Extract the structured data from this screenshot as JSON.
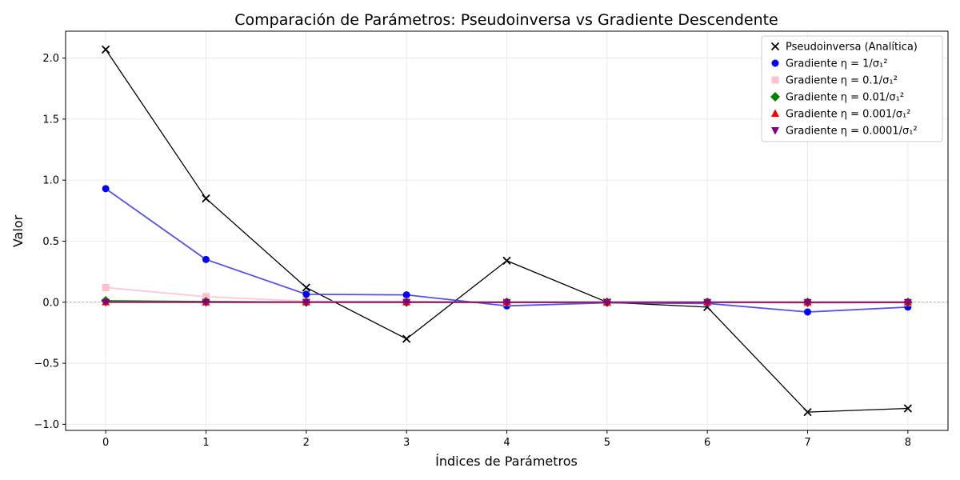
{
  "chart_data": {
    "type": "line",
    "title": "Comparación de Parámetros: Pseudoinversa vs Gradiente Descendente",
    "xlabel": "Índices de Parámetros",
    "ylabel": "Valor",
    "xlim": [
      -0.4,
      8.4
    ],
    "ylim": [
      -1.05,
      2.22
    ],
    "x": [
      0,
      1,
      2,
      3,
      4,
      5,
      6,
      7,
      8
    ],
    "x_ticks": [
      "0",
      "1",
      "2",
      "3",
      "4",
      "5",
      "6",
      "7",
      "8"
    ],
    "y_ticks": [
      -1.0,
      -0.5,
      0.0,
      0.5,
      1.0,
      1.5,
      2.0
    ],
    "y_tick_labels": [
      "−1.0",
      "−0.5",
      "0.0",
      "0.5",
      "1.0",
      "1.5",
      "2.0"
    ],
    "grid": true,
    "zero_line": true,
    "legend_position": "top-right",
    "series": [
      {
        "name": "Pseudoinversa (Analítica)",
        "marker": "x",
        "color": "#000000",
        "line_color": "#000000",
        "values": [
          2.07,
          0.85,
          0.12,
          -0.3,
          0.34,
          0.0,
          -0.04,
          -0.9,
          -0.87
        ]
      },
      {
        "name": "Gradiente η = 1/σ₁²",
        "marker": "circle",
        "color": "#0000ff",
        "line_color": "#3333ee",
        "values": [
          0.93,
          0.35,
          0.065,
          0.06,
          -0.03,
          -0.005,
          -0.01,
          -0.08,
          -0.04
        ]
      },
      {
        "name": "Gradiente η = 0.1/σ₁²",
        "marker": "square",
        "color": "#ffc0cb",
        "line_color": "#ffc0cb",
        "values": [
          0.12,
          0.045,
          0.008,
          0.007,
          -0.003,
          -0.001,
          -0.001,
          -0.008,
          -0.004
        ]
      },
      {
        "name": "Gradiente η = 0.01/σ₁²",
        "marker": "diamond",
        "color": "#008000",
        "line_color": "#008000",
        "values": [
          0.012,
          0.0045,
          0.0008,
          0.0007,
          -0.0003,
          0.0,
          0.0,
          -0.0008,
          -0.0004
        ]
      },
      {
        "name": "Gradiente η = 0.001/σ₁²",
        "marker": "triangle-up",
        "color": "#ff0000",
        "line_color": "#ff0000",
        "values": [
          0.0012,
          0.0005,
          0.0001,
          0.0001,
          0.0,
          0.0,
          0.0,
          -0.0001,
          0.0
        ]
      },
      {
        "name": "Gradiente η = 0.0001/σ₁²",
        "marker": "triangle-down",
        "color": "#800080",
        "line_color": "#800080",
        "values": [
          0.0001,
          0.0,
          0.0,
          0.0,
          0.0,
          0.0,
          0.0,
          0.0,
          0.0
        ]
      }
    ]
  }
}
